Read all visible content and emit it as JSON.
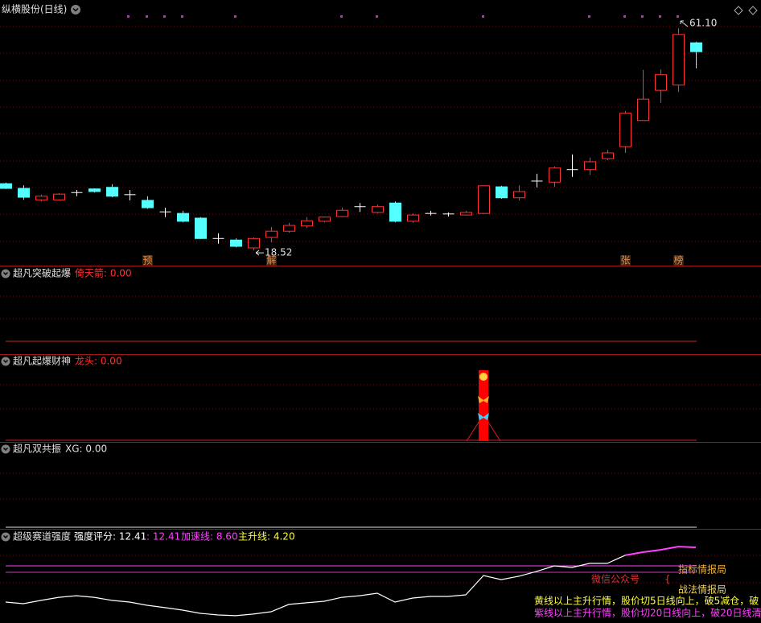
{
  "header": {
    "title": "纵横股份(日线)"
  },
  "main_chart": {
    "type": "candlestick",
    "ylim": [
      15.6,
      66.5
    ],
    "open": [
      31.3,
      30.4,
      28.2,
      28.2,
      29.6,
      30.3,
      30.6,
      29.2,
      28.1,
      25.9,
      25.6,
      24.7,
      20.8,
      20.5,
      19.0,
      21.0,
      22.2,
      23.2,
      24.1,
      25.0,
      26.9,
      25.8,
      27.6,
      24.1,
      25.6,
      25.5,
      25.3,
      25.6,
      30.7,
      28.6,
      31.8,
      31.6,
      34.0,
      34.0,
      36.1,
      38.4,
      43.4,
      49.2,
      50.2,
      58.3
    ],
    "high": [
      31.5,
      31.0,
      29.2,
      29.5,
      30.1,
      30.4,
      31.2,
      30.1,
      28.9,
      26.7,
      26.1,
      24.9,
      21.8,
      20.8,
      21.0,
      23.0,
      23.8,
      24.9,
      25.0,
      26.7,
      27.6,
      27.3,
      27.9,
      25.6,
      26.1,
      25.8,
      26.1,
      31.0,
      30.9,
      31.0,
      33.2,
      34.6,
      36.9,
      36.3,
      37.8,
      45.2,
      53.1,
      53.2,
      61.1,
      58.5
    ],
    "low": [
      30.3,
      28.2,
      27.9,
      28.1,
      28.9,
      29.6,
      28.7,
      28.1,
      26.5,
      24.9,
      23.9,
      20.7,
      19.8,
      19.1,
      18.52,
      20.1,
      21.9,
      22.8,
      23.9,
      24.9,
      25.9,
      25.6,
      23.9,
      23.8,
      25.2,
      25.0,
      25.2,
      25.5,
      28.4,
      28.1,
      30.6,
      30.7,
      32.6,
      33.0,
      35.8,
      37.2,
      43.4,
      46.8,
      48.9,
      53.4
    ],
    "close": [
      30.4,
      28.7,
      28.9,
      29.3,
      29.6,
      29.8,
      28.9,
      29.2,
      26.7,
      25.9,
      24.1,
      20.8,
      20.8,
      19.3,
      20.8,
      22.2,
      23.3,
      24.2,
      24.9,
      26.2,
      26.9,
      26.9,
      24.1,
      25.3,
      25.6,
      25.5,
      25.8,
      30.9,
      28.6,
      29.8,
      31.8,
      34.3,
      34.0,
      35.5,
      37.2,
      44.8,
      47.5,
      52.2,
      59.9,
      56.6
    ],
    "up_color": "#ff3232",
    "down_color": "#54ffff",
    "flat_color": "#ffffff",
    "high_label": "61.10",
    "low_label": "18.52",
    "tags": [
      null,
      null,
      null,
      null,
      null,
      null,
      null,
      null,
      "预",
      null,
      null,
      null,
      null,
      null,
      null,
      "解",
      null,
      null,
      null,
      null,
      null,
      null,
      null,
      null,
      null,
      null,
      null,
      null,
      null,
      null,
      null,
      null,
      null,
      null,
      null,
      "张",
      null,
      null,
      "榜",
      null
    ]
  },
  "panels": [
    {
      "title": "超凡突破起爆",
      "legend": "倚天箭: 0.00"
    },
    {
      "title": "超凡起爆财神",
      "legend": "龙头: 0.00"
    },
    {
      "title": "超凡双共振",
      "legend": "XG: 0.00"
    }
  ],
  "strength_panel": {
    "type": "line",
    "title": "超级赛道强度",
    "ylim": [
      -30.5,
      33.4
    ],
    "legend": [
      "强度评分: 12.41",
      ": 12.41",
      "加速线: 8.60",
      "主升线: 4.20"
    ],
    "legend_colors": [
      "#ffffff",
      "#ff40ff",
      "#ff40ff",
      "#ffff40"
    ],
    "series": [
      {
        "color": "#ffffff",
        "values": [
          -16.2,
          -17.3,
          -15.0,
          -12.9,
          -11.8,
          -12.9,
          -15.0,
          -16.2,
          -18.4,
          -20.0,
          -21.7,
          -23.9,
          -25.0,
          -25.5,
          -24.4,
          -22.8,
          -17.8,
          -16.7,
          -15.6,
          -12.9,
          -11.8,
          -10.1,
          -16.2,
          -13.4,
          -12.3,
          -12.3,
          -11.2,
          2.0,
          -0.8,
          1.5,
          4.8,
          8.6,
          7.5,
          10.3,
          10.3,
          15.8,
          null,
          null,
          null,
          null
        ]
      },
      {
        "color": "#ff40ff",
        "values": [
          null,
          null,
          null,
          null,
          null,
          null,
          null,
          null,
          null,
          null,
          null,
          null,
          null,
          null,
          null,
          null,
          null,
          null,
          null,
          null,
          null,
          null,
          null,
          null,
          null,
          null,
          null,
          null,
          null,
          null,
          null,
          null,
          null,
          null,
          null,
          15.8,
          18.0,
          19.6,
          21.8,
          21.3
        ]
      }
    ],
    "levels": [
      {
        "value": 8.6,
        "color": "#ff40ff"
      },
      {
        "value": 4.2,
        "color": "#c040c0"
      }
    ]
  },
  "notes": {
    "wechat": "微信公众号",
    "brand1": "指标情报局",
    "brand2": "战法情报局",
    "yellow_line": "黄线以上主升行情，股价切5日线向上，破5减仓，破",
    "purple_line": "紫线以上主升行情，股价切20日线向上，破20日线清"
  }
}
